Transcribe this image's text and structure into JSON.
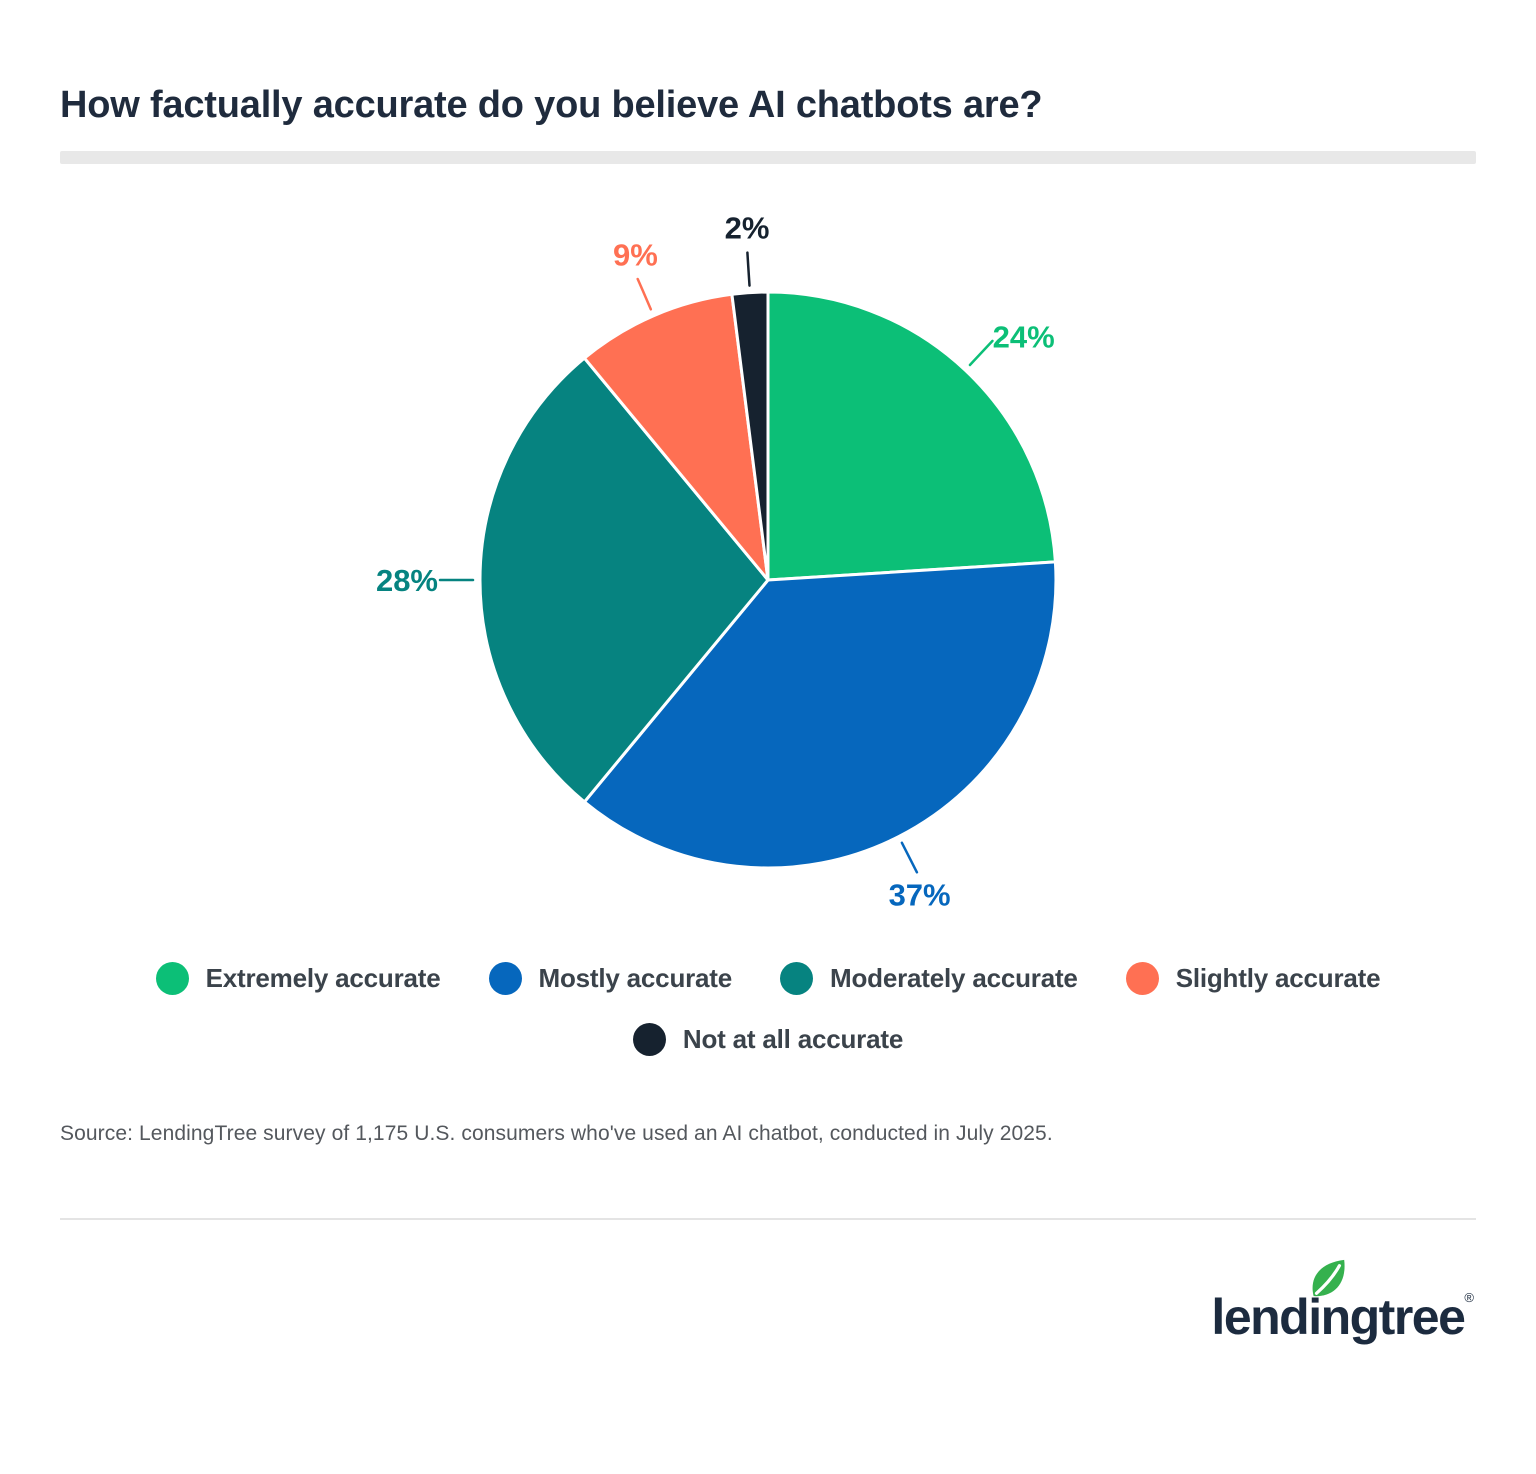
{
  "page": {
    "title": "How factually accurate do you believe AI chatbots are?",
    "source_text": "Source: LendingTree survey of 1,175 U.S. consumers who've used an AI chatbot, conducted in July 2025.",
    "brand": {
      "name": "lendingtree",
      "registered_mark": "®"
    }
  },
  "chart_data": {
    "type": "pie",
    "title": "How factually accurate do you believe AI chatbots are?",
    "start_angle": "12 o'clock",
    "direction": "clockwise",
    "value_unit": "%",
    "legend_position": "bottom",
    "value_labels": "outside with leader lines",
    "slices": [
      {
        "label": "Extremely accurate",
        "value": 24,
        "color": "#0CBF77"
      },
      {
        "label": "Mostly accurate",
        "value": 37,
        "color": "#0667BD"
      },
      {
        "label": "Moderately accurate",
        "value": 28,
        "color": "#068380"
      },
      {
        "label": "Slightly accurate",
        "value": 9,
        "color": "#FF7053"
      },
      {
        "label": "Not at all accurate",
        "value": 2,
        "color": "#16222F"
      }
    ]
  }
}
